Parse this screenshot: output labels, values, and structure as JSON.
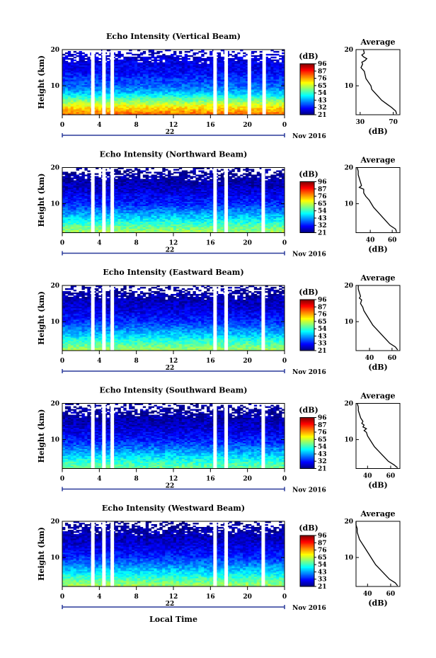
{
  "figure": {
    "x_axis_title": "Local Time",
    "date_label": "Nov 2016"
  },
  "colorbar": {
    "unit": "(dB)"
  },
  "chart_data": [
    {
      "type": "heatmap",
      "title": "Echo Intensity (Vertical Beam)",
      "ylabel": "Height (km)",
      "ylim": [
        2,
        20
      ],
      "yticks": [
        "20",
        "10"
      ],
      "xlim": [
        0,
        24
      ],
      "xticks": [
        "0",
        "4",
        "8",
        "12",
        "16",
        "20",
        "0"
      ],
      "day_label": "22",
      "colorbar_ticks": [
        "96",
        "87",
        "76",
        "65",
        "54",
        "43",
        "32",
        "21"
      ],
      "data_gaps_hours": [
        3.3,
        4.5,
        5.4,
        16.5,
        17.7,
        20.2,
        21.8
      ],
      "intensity_by_height_dB": [
        [
          2,
          80
        ],
        [
          4,
          70
        ],
        [
          6,
          58
        ],
        [
          8,
          45
        ],
        [
          10,
          38
        ],
        [
          12,
          34
        ],
        [
          14,
          30
        ],
        [
          16,
          29
        ],
        [
          18,
          27
        ],
        [
          19.5,
          26
        ]
      ],
      "average_profile": {
        "title": "Average",
        "xlabel": "(dB)",
        "xticks": [
          "30",
          "70"
        ],
        "xlim": [
          25,
          78
        ],
        "ylim": [
          2,
          20
        ],
        "yticks": [
          "20",
          "10"
        ],
        "points": [
          [
            2.2,
            74
          ],
          [
            3,
            73
          ],
          [
            4,
            68
          ],
          [
            5,
            62
          ],
          [
            6,
            56
          ],
          [
            7,
            52
          ],
          [
            8,
            48
          ],
          [
            9,
            44
          ],
          [
            10,
            43
          ],
          [
            11,
            40
          ],
          [
            12,
            37
          ],
          [
            13,
            36
          ],
          [
            14,
            35
          ],
          [
            15,
            31
          ],
          [
            16,
            33
          ],
          [
            16.5,
            32
          ],
          [
            17,
            36
          ],
          [
            17.5,
            38
          ],
          [
            18,
            34
          ],
          [
            18.5,
            32
          ],
          [
            19,
            35
          ],
          [
            20,
            34
          ]
        ]
      }
    },
    {
      "type": "heatmap",
      "title": "Echo Intensity (Northward Beam)",
      "ylabel": "Height (km)",
      "ylim": [
        2,
        20
      ],
      "yticks": [
        "20",
        "10"
      ],
      "xlim": [
        0,
        24
      ],
      "xticks": [
        "0",
        "4",
        "8",
        "12",
        "16",
        "20",
        "0"
      ],
      "day_label": "22",
      "colorbar_ticks": [
        "96",
        "87",
        "76",
        "65",
        "54",
        "43",
        "32",
        "21"
      ],
      "data_gaps_hours": [
        3.3,
        4.5,
        5.4,
        16.5,
        17.7,
        21.7
      ],
      "intensity_by_height_dB": [
        [
          2,
          62
        ],
        [
          4,
          55
        ],
        [
          6,
          47
        ],
        [
          8,
          40
        ],
        [
          10,
          33
        ],
        [
          12,
          30
        ],
        [
          14,
          27
        ],
        [
          16,
          24
        ],
        [
          18,
          23
        ],
        [
          19.5,
          22
        ]
      ],
      "average_profile": {
        "title": "Average",
        "xlabel": "(dB)",
        "xticks": [
          "40",
          "60"
        ],
        "xlim": [
          27,
          67
        ],
        "ylim": [
          2,
          20
        ],
        "yticks": [
          "20",
          "10"
        ],
        "points": [
          [
            2.2,
            64
          ],
          [
            3,
            63
          ],
          [
            4,
            58
          ],
          [
            5,
            55
          ],
          [
            6,
            52
          ],
          [
            7,
            49
          ],
          [
            8,
            46
          ],
          [
            9,
            43
          ],
          [
            10,
            41
          ],
          [
            11,
            39
          ],
          [
            12,
            36
          ],
          [
            13,
            34
          ],
          [
            14,
            34
          ],
          [
            14.5,
            30
          ],
          [
            15,
            32
          ],
          [
            16,
            31
          ],
          [
            17,
            30
          ],
          [
            18,
            29
          ],
          [
            19,
            29
          ],
          [
            20,
            28
          ]
        ]
      }
    },
    {
      "type": "heatmap",
      "title": "Echo Intensity (Eastward Beam)",
      "ylabel": "Height (km)",
      "ylim": [
        2,
        20
      ],
      "yticks": [
        "20",
        "10"
      ],
      "xlim": [
        0,
        24
      ],
      "xticks": [
        "0",
        "4",
        "8",
        "12",
        "16",
        "20",
        "0"
      ],
      "day_label": "22",
      "colorbar_ticks": [
        "96",
        "87",
        "76",
        "65",
        "54",
        "43",
        "33",
        "21"
      ],
      "data_gaps_hours": [
        3.3,
        4.5,
        5.4,
        16.5,
        17.7,
        21.7
      ],
      "intensity_by_height_dB": [
        [
          2,
          62
        ],
        [
          4,
          55
        ],
        [
          6,
          47
        ],
        [
          8,
          40
        ],
        [
          10,
          34
        ],
        [
          12,
          30
        ],
        [
          14,
          27
        ],
        [
          16,
          25
        ],
        [
          18,
          23
        ],
        [
          19.5,
          22
        ]
      ],
      "average_profile": {
        "title": "Average",
        "xlabel": "(dB)",
        "xticks": [
          "40",
          "60"
        ],
        "xlim": [
          28,
          67
        ],
        "ylim": [
          2,
          20
        ],
        "yticks": [
          "20",
          "10"
        ],
        "points": [
          [
            2.2,
            65
          ],
          [
            3,
            63
          ],
          [
            4,
            58
          ],
          [
            5,
            55
          ],
          [
            6,
            52
          ],
          [
            7,
            49
          ],
          [
            8,
            46
          ],
          [
            9,
            43
          ],
          [
            10,
            41
          ],
          [
            11,
            39
          ],
          [
            12,
            37
          ],
          [
            13,
            35
          ],
          [
            14,
            34
          ],
          [
            15,
            32
          ],
          [
            16,
            33
          ],
          [
            16.5,
            31
          ],
          [
            17,
            32
          ],
          [
            18,
            31
          ],
          [
            19,
            30
          ],
          [
            20,
            30
          ]
        ]
      }
    },
    {
      "type": "heatmap",
      "title": "Echo Intensity (Southward Beam)",
      "ylabel": "Height (km)",
      "ylim": [
        2,
        20
      ],
      "yticks": [
        "20",
        "10"
      ],
      "xlim": [
        0,
        24
      ],
      "xticks": [
        "0",
        "4",
        "8",
        "12",
        "16",
        "20",
        "0"
      ],
      "day_label": "22",
      "colorbar_ticks": [
        "96",
        "87",
        "76",
        "65",
        "54",
        "43",
        "32",
        "21"
      ],
      "data_gaps_hours": [
        3.3,
        4.5,
        5.4,
        16.5,
        17.7,
        21.7
      ],
      "intensity_by_height_dB": [
        [
          2,
          58
        ],
        [
          4,
          52
        ],
        [
          6,
          45
        ],
        [
          8,
          38
        ],
        [
          10,
          32
        ],
        [
          12,
          29
        ],
        [
          14,
          26
        ],
        [
          16,
          24
        ],
        [
          18,
          23
        ],
        [
          19.5,
          22
        ]
      ],
      "average_profile": {
        "title": "Average",
        "xlabel": "(dB)",
        "xticks": [
          "40",
          "60"
        ],
        "xlim": [
          30,
          68
        ],
        "ylim": [
          2,
          20
        ],
        "yticks": [
          "20",
          "10"
        ],
        "points": [
          [
            2.2,
            66
          ],
          [
            3,
            63
          ],
          [
            4,
            58
          ],
          [
            5,
            55
          ],
          [
            6,
            52
          ],
          [
            7,
            49
          ],
          [
            8,
            46
          ],
          [
            9,
            44
          ],
          [
            10,
            42
          ],
          [
            11,
            40
          ],
          [
            12,
            39
          ],
          [
            12.5,
            37
          ],
          [
            13,
            39
          ],
          [
            13.5,
            36
          ],
          [
            14,
            37
          ],
          [
            14.5,
            35
          ],
          [
            15,
            36
          ],
          [
            16,
            34
          ],
          [
            17,
            33
          ],
          [
            18,
            32
          ],
          [
            19,
            32
          ],
          [
            20,
            31
          ]
        ]
      }
    },
    {
      "type": "heatmap",
      "title": "Echo Intensity (Westward Beam)",
      "ylabel": "Height (km)",
      "ylim": [
        2,
        20
      ],
      "yticks": [
        "20",
        "10"
      ],
      "xlim": [
        0,
        24
      ],
      "xticks": [
        "0",
        "4",
        "8",
        "12",
        "16",
        "20",
        "0"
      ],
      "day_label": "22",
      "colorbar_ticks": [
        "96",
        "87",
        "76",
        "65",
        "54",
        "43",
        "33",
        "21"
      ],
      "data_gaps_hours": [
        3.3,
        4.5,
        5.4,
        16.5,
        17.7,
        21.7
      ],
      "intensity_by_height_dB": [
        [
          2,
          62
        ],
        [
          4,
          55
        ],
        [
          6,
          47
        ],
        [
          8,
          40
        ],
        [
          10,
          34
        ],
        [
          12,
          30
        ],
        [
          14,
          27
        ],
        [
          16,
          25
        ],
        [
          18,
          23
        ],
        [
          19.5,
          22
        ]
      ],
      "average_profile": {
        "title": "Average",
        "xlabel": "(dB)",
        "xticks": [
          "40",
          "60"
        ],
        "xlim": [
          30,
          68
        ],
        "ylim": [
          2,
          20
        ],
        "yticks": [
          "20",
          "10"
        ],
        "points": [
          [
            2.2,
            66
          ],
          [
            3,
            64
          ],
          [
            4,
            59
          ],
          [
            5,
            56
          ],
          [
            6,
            53
          ],
          [
            7,
            50
          ],
          [
            8,
            47
          ],
          [
            9,
            45
          ],
          [
            10,
            43
          ],
          [
            11,
            41
          ],
          [
            12,
            39
          ],
          [
            13,
            37
          ],
          [
            14,
            35
          ],
          [
            15,
            33
          ],
          [
            16,
            32
          ],
          [
            17,
            31
          ],
          [
            18,
            31
          ],
          [
            19,
            30
          ],
          [
            20,
            30
          ]
        ]
      }
    }
  ]
}
